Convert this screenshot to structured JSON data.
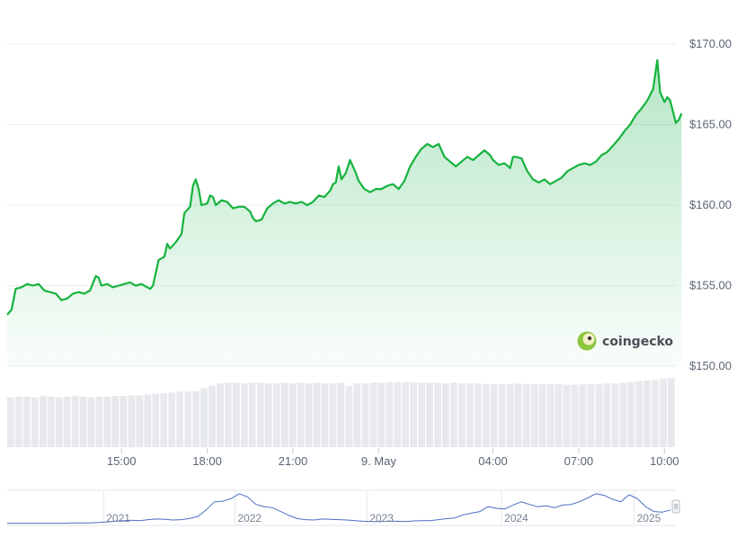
{
  "chart_data": {
    "type": "area",
    "brand": "coingecko",
    "ylim": [
      150,
      170
    ],
    "y_ticks": [
      "$170.00",
      "$165.00",
      "$160.00",
      "$155.00",
      "$150.00"
    ],
    "y_tick_values": [
      170,
      165,
      160,
      155,
      150
    ],
    "x_ticks": [
      "15:00",
      "18:00",
      "21:00",
      "9. May",
      "04:00",
      "07:00",
      "10:00"
    ],
    "x_tick_hours": [
      15,
      18,
      21,
      24,
      28,
      31,
      34
    ],
    "x_range_hours": [
      11.0,
      34.4
    ],
    "series": [
      {
        "values": [
          [
            11.0,
            153.2
          ],
          [
            11.15,
            153.5
          ],
          [
            11.3,
            154.8
          ],
          [
            11.5,
            154.9
          ],
          [
            11.7,
            155.1
          ],
          [
            11.9,
            155.0
          ],
          [
            12.1,
            155.1
          ],
          [
            12.3,
            154.7
          ],
          [
            12.5,
            154.6
          ],
          [
            12.7,
            154.5
          ],
          [
            12.9,
            154.1
          ],
          [
            13.1,
            154.2
          ],
          [
            13.3,
            154.5
          ],
          [
            13.5,
            154.6
          ],
          [
            13.7,
            154.5
          ],
          [
            13.9,
            154.7
          ],
          [
            14.1,
            155.6
          ],
          [
            14.2,
            155.5
          ],
          [
            14.3,
            155.0
          ],
          [
            14.5,
            155.1
          ],
          [
            14.7,
            154.9
          ],
          [
            14.9,
            155.0
          ],
          [
            15.1,
            155.1
          ],
          [
            15.3,
            155.2
          ],
          [
            15.5,
            155.0
          ],
          [
            15.7,
            155.1
          ],
          [
            15.9,
            154.9
          ],
          [
            16.0,
            154.8
          ],
          [
            16.1,
            155.0
          ],
          [
            16.3,
            156.6
          ],
          [
            16.5,
            156.8
          ],
          [
            16.6,
            157.6
          ],
          [
            16.7,
            157.3
          ],
          [
            16.9,
            157.7
          ],
          [
            17.1,
            158.2
          ],
          [
            17.2,
            159.5
          ],
          [
            17.4,
            159.9
          ],
          [
            17.5,
            161.2
          ],
          [
            17.6,
            161.6
          ],
          [
            17.7,
            161.0
          ],
          [
            17.8,
            160.0
          ],
          [
            18.0,
            160.1
          ],
          [
            18.1,
            160.6
          ],
          [
            18.2,
            160.5
          ],
          [
            18.3,
            160.0
          ],
          [
            18.5,
            160.3
          ],
          [
            18.7,
            160.2
          ],
          [
            18.9,
            159.8
          ],
          [
            19.1,
            159.9
          ],
          [
            19.3,
            159.9
          ],
          [
            19.5,
            159.6
          ],
          [
            19.6,
            159.2
          ],
          [
            19.7,
            159.0
          ],
          [
            19.9,
            159.1
          ],
          [
            20.1,
            159.8
          ],
          [
            20.3,
            160.1
          ],
          [
            20.5,
            160.3
          ],
          [
            20.7,
            160.1
          ],
          [
            20.9,
            160.2
          ],
          [
            21.1,
            160.1
          ],
          [
            21.3,
            160.2
          ],
          [
            21.5,
            160.0
          ],
          [
            21.7,
            160.2
          ],
          [
            21.9,
            160.6
          ],
          [
            22.1,
            160.5
          ],
          [
            22.3,
            160.9
          ],
          [
            22.4,
            161.3
          ],
          [
            22.5,
            161.4
          ],
          [
            22.6,
            162.4
          ],
          [
            22.7,
            161.6
          ],
          [
            22.85,
            162.0
          ],
          [
            23.0,
            162.8
          ],
          [
            23.2,
            162.0
          ],
          [
            23.3,
            161.5
          ],
          [
            23.5,
            161.0
          ],
          [
            23.7,
            160.8
          ],
          [
            23.9,
            161.0
          ],
          [
            24.1,
            161.0
          ],
          [
            24.3,
            161.2
          ],
          [
            24.5,
            161.3
          ],
          [
            24.7,
            161.0
          ],
          [
            24.9,
            161.5
          ],
          [
            25.1,
            162.4
          ],
          [
            25.3,
            163.0
          ],
          [
            25.5,
            163.5
          ],
          [
            25.7,
            163.8
          ],
          [
            25.9,
            163.6
          ],
          [
            26.1,
            163.8
          ],
          [
            26.2,
            163.4
          ],
          [
            26.3,
            163.0
          ],
          [
            26.5,
            162.7
          ],
          [
            26.7,
            162.4
          ],
          [
            26.9,
            162.7
          ],
          [
            27.1,
            163.0
          ],
          [
            27.3,
            162.8
          ],
          [
            27.5,
            163.1
          ],
          [
            27.7,
            163.4
          ],
          [
            27.9,
            163.1
          ],
          [
            28.0,
            162.8
          ],
          [
            28.2,
            162.5
          ],
          [
            28.4,
            162.6
          ],
          [
            28.6,
            162.3
          ],
          [
            28.7,
            163.0
          ],
          [
            28.8,
            163.0
          ],
          [
            29.0,
            162.9
          ],
          [
            29.2,
            162.1
          ],
          [
            29.4,
            161.6
          ],
          [
            29.6,
            161.4
          ],
          [
            29.8,
            161.6
          ],
          [
            30.0,
            161.3
          ],
          [
            30.2,
            161.5
          ],
          [
            30.4,
            161.7
          ],
          [
            30.6,
            162.1
          ],
          [
            30.8,
            162.3
          ],
          [
            31.0,
            162.5
          ],
          [
            31.2,
            162.6
          ],
          [
            31.4,
            162.5
          ],
          [
            31.6,
            162.7
          ],
          [
            31.8,
            163.1
          ],
          [
            32.0,
            163.3
          ],
          [
            32.2,
            163.7
          ],
          [
            32.4,
            164.1
          ],
          [
            32.6,
            164.6
          ],
          [
            32.8,
            165.0
          ],
          [
            33.0,
            165.6
          ],
          [
            33.2,
            166.0
          ],
          [
            33.4,
            166.5
          ],
          [
            33.6,
            167.2
          ],
          [
            33.75,
            169.0
          ],
          [
            33.85,
            167.0
          ],
          [
            34.0,
            166.4
          ],
          [
            34.1,
            166.7
          ],
          [
            34.2,
            166.5
          ],
          [
            34.3,
            165.8
          ],
          [
            34.4,
            165.1
          ],
          [
            34.5,
            165.3
          ],
          [
            34.6,
            165.7
          ]
        ]
      }
    ],
    "volume_bars": [
      0.72,
      0.73,
      0.73,
      0.72,
      0.74,
      0.73,
      0.72,
      0.73,
      0.74,
      0.73,
      0.72,
      0.73,
      0.73,
      0.74,
      0.74,
      0.75,
      0.75,
      0.76,
      0.77,
      0.78,
      0.79,
      0.8,
      0.8,
      0.81,
      0.85,
      0.89,
      0.92,
      0.93,
      0.93,
      0.92,
      0.93,
      0.93,
      0.92,
      0.92,
      0.93,
      0.92,
      0.93,
      0.92,
      0.93,
      0.92,
      0.92,
      0.93,
      0.88,
      0.92,
      0.92,
      0.93,
      0.93,
      0.94,
      0.94,
      0.94,
      0.93,
      0.93,
      0.93,
      0.93,
      0.92,
      0.93,
      0.92,
      0.92,
      0.92,
      0.91,
      0.91,
      0.91,
      0.91,
      0.92,
      0.91,
      0.91,
      0.91,
      0.91,
      0.91,
      0.9,
      0.9,
      0.91,
      0.91,
      0.91,
      0.92,
      0.92,
      0.93,
      0.94,
      0.95,
      0.96,
      0.97,
      0.99,
      1.0
    ],
    "navigator": {
      "year_labels": [
        "2021",
        "2022",
        "2023",
        "2024",
        "2025"
      ],
      "year_positions": [
        0.148,
        0.346,
        0.545,
        0.748,
        0.948
      ],
      "values": [
        0.04,
        0.04,
        0.04,
        0.04,
        0.04,
        0.04,
        0.04,
        0.04,
        0.05,
        0.05,
        0.05,
        0.06,
        0.08,
        0.1,
        0.12,
        0.13,
        0.12,
        0.15,
        0.17,
        0.16,
        0.14,
        0.15,
        0.19,
        0.25,
        0.45,
        0.7,
        0.72,
        0.8,
        0.95,
        0.85,
        0.62,
        0.55,
        0.52,
        0.4,
        0.28,
        0.18,
        0.15,
        0.14,
        0.17,
        0.16,
        0.15,
        0.14,
        0.12,
        0.1,
        0.09,
        0.09,
        0.1,
        0.1,
        0.09,
        0.11,
        0.12,
        0.12,
        0.15,
        0.18,
        0.2,
        0.3,
        0.35,
        0.4,
        0.55,
        0.5,
        0.48,
        0.6,
        0.7,
        0.62,
        0.55,
        0.58,
        0.52,
        0.6,
        0.62,
        0.7,
        0.82,
        0.95,
        0.9,
        0.78,
        0.7,
        0.92,
        0.8,
        0.55,
        0.4,
        0.38,
        0.45
      ]
    }
  }
}
